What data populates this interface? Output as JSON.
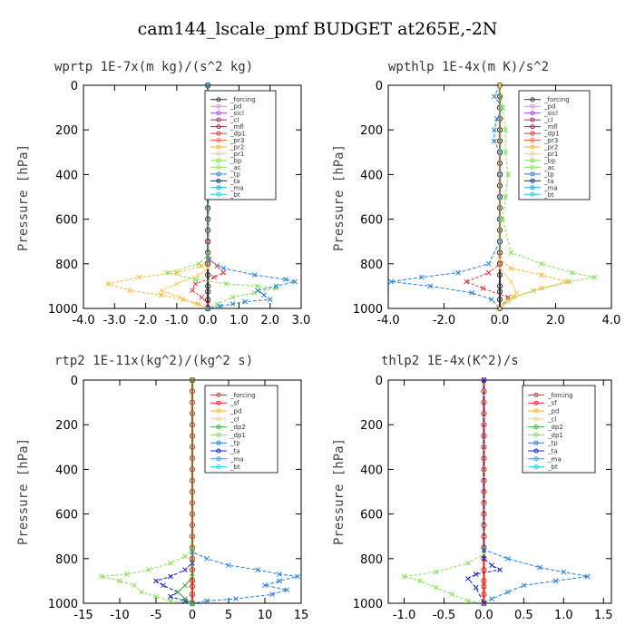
{
  "figure_title": "cam144_lscale_pmf  BUDGET at265E,-2N",
  "colors": {
    "forcing": "#333333",
    "pd": "#d98ad9",
    "sicl": "#a14fd8",
    "cl": "#9b2a6a",
    "mfl": "#c01040",
    "dp1": "#e8323c",
    "pr3": "#f06a4a",
    "pr2": "#ffb020",
    "pr1": "#f8d070",
    "bp": "#7fe04a",
    "ac": "#8ee05a",
    "tp": "#2080e0",
    "ta": "#1520c8",
    "ma": "#1aa8d8",
    "bt": "#20c8e8",
    "sf": "#ff2020",
    "dp2": "#30b030",
    "red_forcing": "#e03020"
  },
  "chart_data": [
    {
      "type": "line",
      "title": "wprtp  1E-7x(m kg)/(s^2 kg)",
      "ylabel": "Pressure [hPa]",
      "xlim": [
        -4.0,
        3.0
      ],
      "ylim": [
        0,
        1000
      ],
      "xticks": [
        -4.0,
        -3.0,
        -2.0,
        -1.0,
        0.0,
        1.0,
        2.0,
        3.0
      ],
      "xtick_labels": [
        "-4.0",
        "-3.0",
        "-2.0",
        "-1.0",
        "0.0",
        "1.0",
        "2.0",
        "3.0"
      ],
      "yticks": [
        0,
        200,
        400,
        600,
        800,
        1000
      ],
      "ytick_labels": [
        "0",
        "200",
        "400",
        "600",
        "800",
        "1000"
      ],
      "legend": [
        "_forcing",
        "_pd",
        "_sicl",
        "_cl",
        "_mfl",
        "_dp1",
        "_pr3",
        "_pr2",
        "_pr1",
        "_bp",
        "_ac",
        "_tp",
        "_ta",
        "_ma",
        "_bt"
      ],
      "legend_keys": [
        "forcing",
        "pd",
        "sicl",
        "cl",
        "mfl",
        "dp1",
        "pr3",
        "pr2",
        "pr1",
        "bp",
        "ac",
        "tp",
        "ta",
        "ma",
        "bt"
      ],
      "series": [
        {
          "name": "_forcing",
          "key": "forcing",
          "x": [
            0,
            0,
            0,
            0,
            0,
            0,
            0,
            0,
            0,
            0,
            0,
            0,
            0,
            0,
            0,
            0,
            0,
            0,
            0,
            0,
            0,
            0
          ],
          "y": [
            0,
            50,
            100,
            150,
            200,
            250,
            300,
            350,
            400,
            450,
            500,
            550,
            600,
            650,
            700,
            750,
            800,
            850,
            900,
            925,
            960,
            1000
          ]
        },
        {
          "name": "_dp1",
          "key": "dp1",
          "x": [
            0,
            0,
            0.05,
            0.3,
            0.5,
            0.2,
            -0.4,
            -0.5,
            -0.2,
            0,
            0
          ],
          "y": [
            0,
            700,
            780,
            810,
            840,
            860,
            890,
            920,
            950,
            980,
            1000
          ]
        },
        {
          "name": "_pr2",
          "key": "pr2",
          "x": [
            0,
            0,
            -0.2,
            -1.0,
            -2.2,
            -3.2,
            -2.5,
            -1.5,
            -0.8,
            -0.3,
            0
          ],
          "y": [
            0,
            780,
            810,
            840,
            860,
            890,
            920,
            940,
            960,
            980,
            1000
          ]
        },
        {
          "name": "_pr1",
          "key": "pr1",
          "x": [
            0,
            0,
            -0.3,
            -1.0,
            -1.5,
            -0.9,
            -0.4,
            0
          ],
          "y": [
            0,
            820,
            850,
            890,
            920,
            950,
            980,
            1000
          ]
        },
        {
          "name": "_bp",
          "key": "bp",
          "x": [
            0,
            0,
            -0.3,
            -1.3,
            -0.4,
            0.6,
            1.6,
            2.2,
            1.5,
            0.8,
            0.3,
            0
          ],
          "y": [
            0,
            760,
            800,
            840,
            870,
            890,
            900,
            910,
            930,
            950,
            980,
            1000
          ]
        },
        {
          "name": "_tp",
          "key": "tp",
          "x": [
            0,
            0,
            0.5,
            1.5,
            2.5,
            2.8,
            2.2,
            1.6,
            1.8,
            2.0,
            1.2,
            0.8,
            0.4,
            0
          ],
          "y": [
            0,
            780,
            820,
            850,
            870,
            880,
            900,
            920,
            940,
            960,
            970,
            980,
            990,
            1000
          ]
        }
      ]
    },
    {
      "type": "line",
      "title": "wpthlp  1E-4x(m K)/s^2",
      "ylabel": "Pressure [hPa]",
      "xlim": [
        -4.0,
        4.0
      ],
      "ylim": [
        0,
        1000
      ],
      "xticks": [
        -4.0,
        -2.0,
        0.0,
        2.0,
        4.0
      ],
      "xtick_labels": [
        "-4.0",
        "-2.0",
        "0.0",
        "2.0",
        "4.0"
      ],
      "yticks": [
        0,
        200,
        400,
        600,
        800,
        1000
      ],
      "ytick_labels": [
        "0",
        "200",
        "400",
        "600",
        "800",
        "1000"
      ],
      "legend": [
        "_forcing",
        "_pd",
        "_sicl",
        "_cl",
        "_mfl",
        "_dp1",
        "_pr3",
        "_pr2",
        "_pr1",
        "_bp",
        "_ac",
        "_tp",
        "_ta",
        "_ma",
        "_bt"
      ],
      "legend_keys": [
        "forcing",
        "pd",
        "sicl",
        "cl",
        "mfl",
        "dp1",
        "pr3",
        "pr2",
        "pr1",
        "bp",
        "ac",
        "tp",
        "ta",
        "ma",
        "bt"
      ],
      "series": [
        {
          "name": "_forcing",
          "key": "forcing",
          "x": [
            0,
            0,
            0,
            0,
            0,
            0,
            0,
            0,
            0,
            0,
            0,
            0,
            0,
            0,
            0,
            0,
            0,
            0,
            0,
            0,
            0,
            0
          ],
          "y": [
            0,
            50,
            100,
            150,
            200,
            250,
            300,
            350,
            400,
            450,
            500,
            550,
            600,
            650,
            700,
            750,
            800,
            850,
            900,
            925,
            960,
            1000
          ]
        },
        {
          "name": "_tp",
          "key": "tp",
          "x": [
            0,
            -0.2,
            0.1,
            -0.1,
            -0.2,
            -0.2,
            0,
            0,
            0,
            0,
            0,
            -0.4,
            -1.5,
            -2.8,
            -3.9,
            -2.5,
            -1.0,
            -0.3,
            0
          ],
          "y": [
            0,
            50,
            100,
            150,
            200,
            250,
            300,
            400,
            500,
            600,
            700,
            800,
            840,
            860,
            880,
            900,
            930,
            960,
            1000
          ]
        },
        {
          "name": "_bp",
          "key": "bp",
          "x": [
            0,
            0.1,
            0.2,
            0.2,
            0.3,
            0.2,
            0.1,
            0.4,
            1.5,
            2.6,
            3.4,
            2.5,
            1.2,
            0.3,
            0
          ],
          "y": [
            0,
            100,
            200,
            300,
            400,
            500,
            600,
            750,
            800,
            840,
            860,
            880,
            920,
            960,
            1000
          ]
        },
        {
          "name": "_pr2",
          "key": "pr2",
          "x": [
            0,
            0,
            0.4,
            1.5,
            2.4,
            1.5,
            0.5,
            0
          ],
          "y": [
            0,
            780,
            820,
            850,
            880,
            910,
            950,
            1000
          ]
        },
        {
          "name": "_dp1",
          "key": "dp1",
          "x": [
            0,
            0,
            -0.4,
            -1.2,
            -0.6,
            0.3,
            0
          ],
          "y": [
            0,
            800,
            840,
            880,
            910,
            950,
            1000
          ]
        },
        {
          "name": "_pr1",
          "key": "pr1",
          "x": [
            0,
            0,
            0.4,
            0.6,
            0.3,
            0
          ],
          "y": [
            0,
            820,
            880,
            930,
            970,
            1000
          ]
        }
      ]
    },
    {
      "type": "line",
      "title": "rtp2  1E-11x(kg^2)/(kg^2 s)",
      "ylabel": "Pressure [hPa]",
      "xlim": [
        -15,
        15
      ],
      "ylim": [
        0,
        1000
      ],
      "xticks": [
        -15,
        -10,
        -5,
        0,
        5,
        10,
        15
      ],
      "xtick_labels": [
        "-15",
        "-10",
        "-5",
        "0",
        "5",
        "10",
        "15"
      ],
      "yticks": [
        0,
        200,
        400,
        600,
        800,
        1000
      ],
      "ytick_labels": [
        "0",
        "200",
        "400",
        "600",
        "800",
        "1000"
      ],
      "legend": [
        "_forcing",
        "_sf",
        "_pd",
        "_cl",
        "_dp2",
        "_dp1",
        "_tp",
        "_ta",
        "_ma",
        "_bt"
      ],
      "legend_keys": [
        "red_forcing",
        "sf",
        "pr2",
        "pr1",
        "dp2",
        "bp",
        "tp",
        "ta",
        "ma",
        "bt"
      ],
      "series": [
        {
          "name": "_forcing",
          "key": "red_forcing",
          "x": [
            0,
            0,
            0,
            0,
            0,
            0,
            0,
            0,
            0,
            0,
            0,
            0,
            0,
            0,
            0,
            0,
            0,
            0,
            0,
            0,
            0,
            0
          ],
          "y": [
            0,
            50,
            100,
            150,
            200,
            250,
            300,
            350,
            400,
            450,
            500,
            550,
            600,
            650,
            700,
            750,
            800,
            850,
            900,
            925,
            960,
            1000
          ]
        },
        {
          "name": "_dp1",
          "key": "bp",
          "x": [
            0,
            0,
            -1,
            -3,
            -6,
            -9,
            -12.5,
            -10,
            -8,
            -7,
            -5,
            -3,
            0
          ],
          "y": [
            0,
            760,
            790,
            820,
            850,
            870,
            880,
            900,
            920,
            950,
            970,
            990,
            1000
          ]
        },
        {
          "name": "_tp",
          "key": "tp",
          "x": [
            0,
            0,
            2,
            5,
            9,
            12,
            14.5,
            12,
            10,
            13,
            11,
            6,
            2,
            0
          ],
          "y": [
            0,
            770,
            800,
            830,
            850,
            870,
            880,
            900,
            920,
            940,
            960,
            980,
            990,
            1000
          ]
        },
        {
          "name": "_ta",
          "key": "ta",
          "x": [
            0,
            0,
            -1,
            -3,
            -5,
            -4,
            -2,
            -3,
            -1,
            0
          ],
          "y": [
            0,
            820,
            850,
            880,
            900,
            920,
            950,
            970,
            990,
            1000
          ]
        },
        {
          "name": "_dp2",
          "key": "dp2",
          "x": [
            0,
            0,
            -1,
            -2,
            -1,
            0
          ],
          "y": [
            0,
            880,
            920,
            950,
            980,
            1000
          ]
        }
      ]
    },
    {
      "type": "line",
      "title": "thlp2  1E-4x(K^2)/s",
      "ylabel": "Pressure [hPa]",
      "xlim": [
        -1.2,
        1.6
      ],
      "ylim": [
        0,
        1000
      ],
      "xticks": [
        -1.0,
        -0.5,
        0.0,
        0.5,
        1.0,
        1.5
      ],
      "xtick_labels": [
        "-1.0",
        "-0.5",
        "0.0",
        "0.5",
        "1.0",
        "1.5"
      ],
      "yticks": [
        0,
        200,
        400,
        600,
        800,
        1000
      ],
      "ytick_labels": [
        "0",
        "200",
        "400",
        "600",
        "800",
        "1000"
      ],
      "legend": [
        "_forcing",
        "_sf",
        "_pd",
        "_cl",
        "_dp2",
        "_dp1",
        "_tp",
        "_ta",
        "_ma",
        "_bt"
      ],
      "legend_keys": [
        "red_forcing",
        "sf",
        "pr2",
        "pr1",
        "dp2",
        "bp",
        "tp",
        "ta",
        "ma",
        "bt"
      ],
      "series": [
        {
          "name": "_forcing",
          "key": "red_forcing",
          "x": [
            0,
            0,
            0,
            0,
            0,
            0,
            0,
            0,
            0,
            0,
            0,
            0,
            0,
            0,
            0,
            0,
            0,
            0,
            0,
            0,
            0,
            0
          ],
          "y": [
            0,
            50,
            100,
            150,
            200,
            250,
            300,
            350,
            400,
            450,
            500,
            550,
            600,
            650,
            700,
            750,
            800,
            850,
            900,
            925,
            960,
            1000
          ]
        },
        {
          "name": "_dp1",
          "key": "bp",
          "x": [
            0,
            0,
            -0.2,
            -0.6,
            -1.0,
            -0.8,
            -0.6,
            -0.4,
            -0.2,
            0
          ],
          "y": [
            0,
            780,
            820,
            860,
            880,
            900,
            930,
            960,
            990,
            1000
          ]
        },
        {
          "name": "_tp",
          "key": "tp",
          "x": [
            0,
            0,
            0.3,
            0.7,
            1.0,
            1.3,
            0.9,
            0.5,
            0.3,
            0.1,
            0
          ],
          "y": [
            0,
            760,
            800,
            840,
            860,
            880,
            900,
            920,
            950,
            980,
            1000
          ]
        },
        {
          "name": "_ta",
          "key": "ta",
          "x": [
            0,
            0,
            0.1,
            0.2,
            -0.1,
            -0.2,
            -0.1,
            0
          ],
          "y": [
            0,
            800,
            830,
            850,
            870,
            890,
            930,
            1000
          ]
        }
      ]
    }
  ]
}
